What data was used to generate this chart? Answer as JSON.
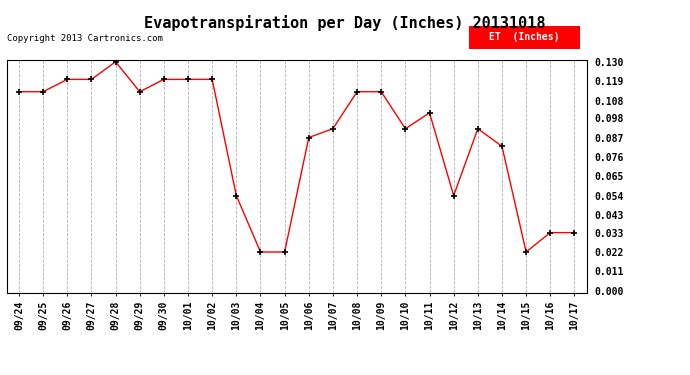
{
  "title": "Evapotranspiration per Day (Inches) 20131018",
  "copyright": "Copyright 2013 Cartronics.com",
  "legend_label": "ET  (Inches)",
  "x_labels": [
    "09/24",
    "09/25",
    "09/26",
    "09/27",
    "09/28",
    "09/29",
    "09/30",
    "10/01",
    "10/02",
    "10/03",
    "10/04",
    "10/05",
    "10/06",
    "10/07",
    "10/08",
    "10/09",
    "10/10",
    "10/11",
    "10/12",
    "10/13",
    "10/14",
    "10/15",
    "10/16",
    "10/17"
  ],
  "y_values": [
    0.113,
    0.113,
    0.12,
    0.12,
    0.13,
    0.113,
    0.12,
    0.12,
    0.12,
    0.054,
    0.022,
    0.022,
    0.087,
    0.092,
    0.113,
    0.113,
    0.092,
    0.101,
    0.054,
    0.092,
    0.082,
    0.022,
    0.033,
    0.033
  ],
  "ylim_min": 0.0,
  "ylim_max": 0.13,
  "yticks": [
    0.0,
    0.011,
    0.022,
    0.033,
    0.043,
    0.054,
    0.065,
    0.076,
    0.087,
    0.098,
    0.108,
    0.119,
    0.13
  ],
  "line_color": "red",
  "marker_color": "black",
  "background_color": "#ffffff",
  "grid_color": "#b0b0b0",
  "legend_bg": "red",
  "legend_fg": "white",
  "title_fontsize": 11,
  "tick_fontsize": 7,
  "copyright_fontsize": 6.5
}
